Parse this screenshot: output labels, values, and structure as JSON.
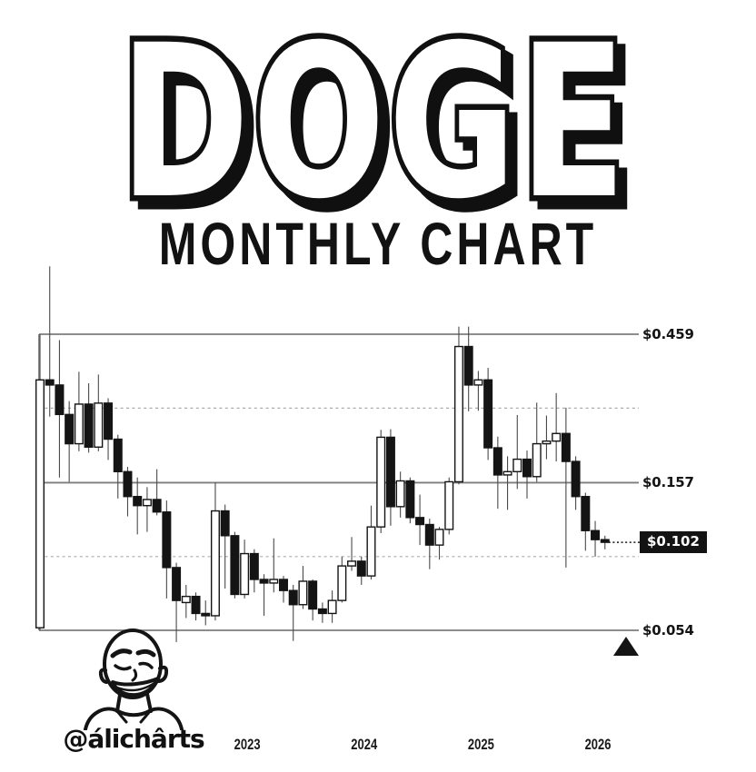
{
  "header": {
    "title": "DOGE",
    "subtitle": "MONTHLY CHART"
  },
  "footer": {
    "handle": "@álichârts"
  },
  "chart_data": {
    "type": "candlestick",
    "symbol": "DOGE",
    "timeframe": "Monthly",
    "y_scale": "log",
    "grid": "horizontal-levels-only",
    "legend": "none",
    "colors": {
      "up_candle": "#ffffff",
      "down_candle": "#141414",
      "candle_border": "#141414",
      "wick": "#4a4a4a",
      "level_line": "#7d7d7d",
      "dashed_line": "#ababab",
      "tag_bg": "#131313",
      "tag_fg": "#ffffff"
    },
    "ylim": [
      0.054,
      0.459
    ],
    "levels": [
      {
        "label": "$0.459",
        "value": 0.459,
        "style": "solid"
      },
      {
        "label": "$0.157",
        "value": 0.157,
        "style": "solid"
      },
      {
        "label": "$0.054",
        "value": 0.054,
        "style": "solid"
      }
    ],
    "dashed_levels": [
      0.269,
      0.092
    ],
    "current_price": {
      "label": "$0.102",
      "value": 0.102,
      "connector": "dotted"
    },
    "marker": "up-triangle-below-low-level",
    "x_ticks": [
      {
        "label": "2023",
        "month_index": 21
      },
      {
        "label": "2024",
        "month_index": 33
      },
      {
        "label": "2025",
        "month_index": 45
      },
      {
        "label": "2026",
        "month_index": 57
      }
    ],
    "candles": [
      {
        "m": "2021-04",
        "o": 0.055,
        "h": 0.459,
        "l": 0.054,
        "c": 0.33
      },
      {
        "m": "2021-05",
        "o": 0.33,
        "h": 0.75,
        "l": 0.253,
        "c": 0.318
      },
      {
        "m": "2021-06",
        "o": 0.318,
        "h": 0.44,
        "l": 0.163,
        "c": 0.257
      },
      {
        "m": "2021-07",
        "o": 0.257,
        "h": 0.283,
        "l": 0.158,
        "c": 0.208
      },
      {
        "m": "2021-08",
        "o": 0.208,
        "h": 0.35,
        "l": 0.197,
        "c": 0.277
      },
      {
        "m": "2021-09",
        "o": 0.277,
        "h": 0.322,
        "l": 0.195,
        "c": 0.203
      },
      {
        "m": "2021-10",
        "o": 0.203,
        "h": 0.343,
        "l": 0.197,
        "c": 0.279
      },
      {
        "m": "2021-11",
        "o": 0.279,
        "h": 0.289,
        "l": 0.185,
        "c": 0.215
      },
      {
        "m": "2021-12",
        "o": 0.215,
        "h": 0.222,
        "l": 0.14,
        "c": 0.17
      },
      {
        "m": "2022-01",
        "o": 0.17,
        "h": 0.176,
        "l": 0.123,
        "c": 0.142
      },
      {
        "m": "2022-02",
        "o": 0.142,
        "h": 0.163,
        "l": 0.108,
        "c": 0.133
      },
      {
        "m": "2022-03",
        "o": 0.133,
        "h": 0.152,
        "l": 0.11,
        "c": 0.139
      },
      {
        "m": "2022-04",
        "o": 0.139,
        "h": 0.173,
        "l": 0.124,
        "c": 0.127
      },
      {
        "m": "2022-05",
        "o": 0.127,
        "h": 0.138,
        "l": 0.068,
        "c": 0.085
      },
      {
        "m": "2022-06",
        "o": 0.085,
        "h": 0.088,
        "l": 0.0496,
        "c": 0.067
      },
      {
        "m": "2022-07",
        "o": 0.066,
        "h": 0.075,
        "l": 0.059,
        "c": 0.069
      },
      {
        "m": "2022-08",
        "o": 0.069,
        "h": 0.071,
        "l": 0.058,
        "c": 0.061
      },
      {
        "m": "2022-09",
        "o": 0.061,
        "h": 0.067,
        "l": 0.056,
        "c": 0.06
      },
      {
        "m": "2022-10",
        "o": 0.06,
        "h": 0.157,
        "l": 0.058,
        "c": 0.128
      },
      {
        "m": "2022-11",
        "o": 0.128,
        "h": 0.134,
        "l": 0.073,
        "c": 0.107
      },
      {
        "m": "2022-12",
        "o": 0.107,
        "h": 0.11,
        "l": 0.068,
        "c": 0.07
      },
      {
        "m": "2023-01",
        "o": 0.07,
        "h": 0.104,
        "l": 0.068,
        "c": 0.094
      },
      {
        "m": "2023-02",
        "o": 0.094,
        "h": 0.097,
        "l": 0.071,
        "c": 0.078
      },
      {
        "m": "2023-03",
        "o": 0.078,
        "h": 0.081,
        "l": 0.06,
        "c": 0.076
      },
      {
        "m": "2023-04",
        "o": 0.076,
        "h": 0.105,
        "l": 0.071,
        "c": 0.078
      },
      {
        "m": "2023-05",
        "o": 0.078,
        "h": 0.08,
        "l": 0.066,
        "c": 0.072
      },
      {
        "m": "2023-06",
        "o": 0.072,
        "h": 0.075,
        "l": 0.05,
        "c": 0.065
      },
      {
        "m": "2023-07",
        "o": 0.065,
        "h": 0.086,
        "l": 0.063,
        "c": 0.077
      },
      {
        "m": "2023-08",
        "o": 0.077,
        "h": 0.078,
        "l": 0.058,
        "c": 0.063
      },
      {
        "m": "2023-09",
        "o": 0.063,
        "h": 0.066,
        "l": 0.057,
        "c": 0.061
      },
      {
        "m": "2023-10",
        "o": 0.061,
        "h": 0.072,
        "l": 0.057,
        "c": 0.067
      },
      {
        "m": "2023-11",
        "o": 0.067,
        "h": 0.092,
        "l": 0.066,
        "c": 0.086
      },
      {
        "m": "2023-12",
        "o": 0.086,
        "h": 0.106,
        "l": 0.083,
        "c": 0.089
      },
      {
        "m": "2024-01",
        "o": 0.089,
        "h": 0.092,
        "l": 0.075,
        "c": 0.08
      },
      {
        "m": "2024-02",
        "o": 0.08,
        "h": 0.133,
        "l": 0.078,
        "c": 0.114
      },
      {
        "m": "2024-03",
        "o": 0.114,
        "h": 0.23,
        "l": 0.109,
        "c": 0.218
      },
      {
        "m": "2024-04",
        "o": 0.218,
        "h": 0.231,
        "l": 0.115,
        "c": 0.132
      },
      {
        "m": "2024-05",
        "o": 0.132,
        "h": 0.17,
        "l": 0.122,
        "c": 0.159
      },
      {
        "m": "2024-06",
        "o": 0.159,
        "h": 0.163,
        "l": 0.117,
        "c": 0.122
      },
      {
        "m": "2024-07",
        "o": 0.122,
        "h": 0.144,
        "l": 0.1,
        "c": 0.116
      },
      {
        "m": "2024-08",
        "o": 0.116,
        "h": 0.121,
        "l": 0.084,
        "c": 0.1
      },
      {
        "m": "2024-09",
        "o": 0.1,
        "h": 0.114,
        "l": 0.09,
        "c": 0.112
      },
      {
        "m": "2024-10",
        "o": 0.112,
        "h": 0.163,
        "l": 0.108,
        "c": 0.158
      },
      {
        "m": "2024-11",
        "o": 0.158,
        "h": 0.485,
        "l": 0.155,
        "c": 0.42
      },
      {
        "m": "2024-12",
        "o": 0.42,
        "h": 0.485,
        "l": 0.263,
        "c": 0.318
      },
      {
        "m": "2025-01",
        "o": 0.318,
        "h": 0.352,
        "l": 0.264,
        "c": 0.33
      },
      {
        "m": "2025-02",
        "o": 0.33,
        "h": 0.36,
        "l": 0.185,
        "c": 0.202
      },
      {
        "m": "2025-03",
        "o": 0.202,
        "h": 0.219,
        "l": 0.13,
        "c": 0.166
      },
      {
        "m": "2025-04",
        "o": 0.166,
        "h": 0.19,
        "l": 0.129,
        "c": 0.17
      },
      {
        "m": "2025-05",
        "o": 0.17,
        "h": 0.256,
        "l": 0.15,
        "c": 0.186
      },
      {
        "m": "2025-06",
        "o": 0.186,
        "h": 0.198,
        "l": 0.14,
        "c": 0.164
      },
      {
        "m": "2025-07",
        "o": 0.164,
        "h": 0.28,
        "l": 0.158,
        "c": 0.208
      },
      {
        "m": "2025-08",
        "o": 0.208,
        "h": 0.255,
        "l": 0.186,
        "c": 0.212
      },
      {
        "m": "2025-09",
        "o": 0.212,
        "h": 0.3,
        "l": 0.183,
        "c": 0.224
      },
      {
        "m": "2025-10",
        "o": 0.224,
        "h": 0.27,
        "l": 0.085,
        "c": 0.183
      },
      {
        "m": "2025-11",
        "o": 0.183,
        "h": 0.19,
        "l": 0.129,
        "c": 0.142
      },
      {
        "m": "2025-12",
        "o": 0.142,
        "h": 0.146,
        "l": 0.096,
        "c": 0.111
      },
      {
        "m": "2026-01",
        "o": 0.111,
        "h": 0.119,
        "l": 0.092,
        "c": 0.104
      },
      {
        "m": "2026-02",
        "o": 0.104,
        "h": 0.107,
        "l": 0.097,
        "c": 0.102
      }
    ]
  }
}
